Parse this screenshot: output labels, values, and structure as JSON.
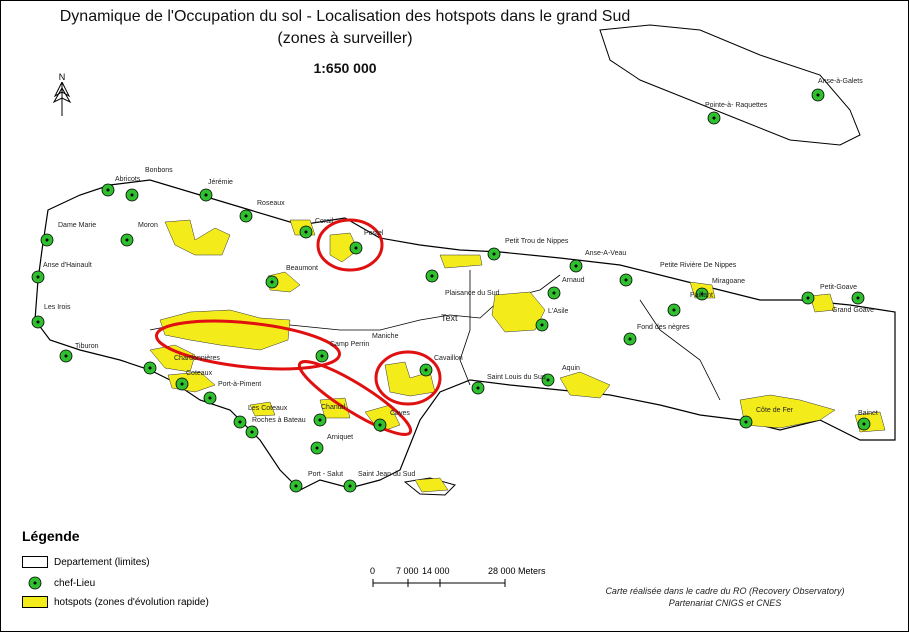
{
  "title_line1": "Dynamique de l'Occupation du sol - Localisation des hotspots dans le grand Sud",
  "title_line2": "(zones à surveiller)",
  "scale_text": "1:650 000",
  "north": "N",
  "legend": {
    "title": "Légende",
    "items": [
      {
        "label": "Departement (limites)"
      },
      {
        "label": "chef-Lieu"
      },
      {
        "label": "hotspots (zones d'évolution rapide)"
      }
    ]
  },
  "scalebar": {
    "labels": [
      "0",
      "7 000",
      "14 000",
      "28 000 Meters"
    ]
  },
  "credit": {
    "line1": "Carte réalisée dans le cadre du RO (Recovery Observatory)",
    "line2": "Partenariat CNIGS et CNES"
  },
  "colors": {
    "hotspot": "#f4ec1a",
    "chef_lieu": "#2fbf2f",
    "circle": "#e01010"
  },
  "places": [
    "Anse-à-Galets",
    "Pointe-à- Raquettes",
    "Abricots",
    "Bonbons",
    "Jérémie",
    "Roseaux",
    "Corail",
    "Pestel",
    "Dame Marie",
    "Moron",
    "Anse d'Hainault",
    "Beaumont",
    "Petit Trou de Nippes",
    "Anse-A-Veau",
    "Petite Rivière De Nippes",
    "Miragoane",
    "Petit-Goave",
    "Grand Goave",
    "Paillant",
    "Arnaud",
    "Plaisance du Sud",
    "L'Asile",
    "Les Irois",
    "Text",
    "Maniche",
    "Fond des nègres",
    "Tiburon",
    "Camp Perrin",
    "Cavaillon",
    "Chardonnières",
    "Port-à-Piment",
    "Aquin",
    "Saint Louis du Sud",
    "Les Coteaux",
    "Roches à Bateau",
    "Chantal",
    "Cayes",
    "Côte de Fer",
    "Bainet",
    "Arniquet",
    "Port - Salut",
    "Saint Jean du Sud",
    "Coteaux"
  ]
}
